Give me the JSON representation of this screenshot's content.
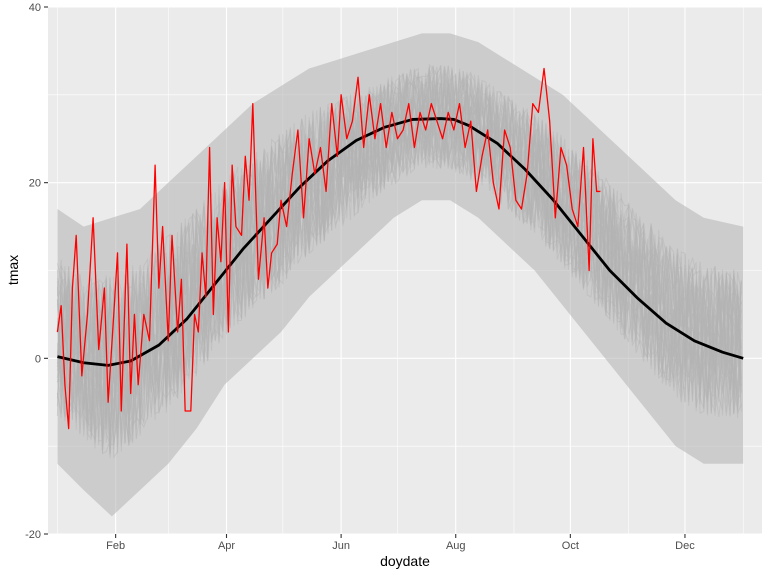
{
  "chart_data": {
    "type": "line",
    "xlabel": "doydate",
    "ylabel": "tmax",
    "x_ticks": [
      {
        "label": "Feb",
        "day": 32
      },
      {
        "label": "Apr",
        "day": 91
      },
      {
        "label": "Jun",
        "day": 152
      },
      {
        "label": "Aug",
        "day": 213
      },
      {
        "label": "Oct",
        "day": 274
      },
      {
        "label": "Dec",
        "day": 335
      }
    ],
    "x_minor_days": [
      1,
      60,
      121,
      182,
      244,
      305,
      366
    ],
    "y_ticks": [
      -20,
      0,
      20,
      40
    ],
    "y_minor": [
      -10,
      10,
      30
    ],
    "xlim": [
      -4,
      376
    ],
    "ylim": [
      -20,
      40
    ],
    "grid": true,
    "legend": "none",
    "colors": {
      "panel_background": "#ebebeb",
      "grid": "#ffffff",
      "historical_years": "#b3b3b3",
      "current_year": "#ff0000",
      "climatology": "#000000"
    },
    "series": [
      {
        "role": "historical daily maxima, one faint line per past year",
        "style": "grey band",
        "envelope": {
          "day": [
            1,
            15,
            30,
            45,
            60,
            75,
            90,
            105,
            120,
            135,
            150,
            165,
            180,
            195,
            210,
            225,
            240,
            255,
            270,
            285,
            300,
            315,
            330,
            345,
            366
          ],
          "lower": [
            -12,
            -15,
            -18,
            -15,
            -12,
            -8,
            -3,
            0,
            3,
            7,
            10,
            13,
            16,
            18,
            18,
            16,
            13,
            10,
            6,
            2,
            -2,
            -6,
            -10,
            -12,
            -12
          ],
          "upper": [
            17,
            15,
            16,
            17,
            20,
            23,
            26,
            29,
            31,
            33,
            34,
            35,
            36,
            37,
            37,
            36,
            34,
            32,
            30,
            27,
            24,
            21,
            18,
            16,
            15
          ]
        }
      },
      {
        "role": "smoothed climatology",
        "style": "black thick line",
        "day": [
          1,
          15,
          28,
          40,
          55,
          70,
          85,
          100,
          115,
          130,
          145,
          160,
          175,
          190,
          205,
          212,
          220,
          235,
          250,
          265,
          280,
          295,
          310,
          325,
          340,
          355,
          366
        ],
        "value": [
          0.2,
          -0.5,
          -0.8,
          -0.3,
          1.5,
          4.5,
          8.5,
          12.5,
          16,
          19.5,
          22.5,
          24.8,
          26.3,
          27.2,
          27.3,
          27.2,
          26.5,
          24.5,
          21.5,
          18,
          14,
          10,
          6.8,
          4,
          2,
          0.7,
          0
        ]
      },
      {
        "role": "current year daily maxima",
        "style": "red line",
        "day": [
          1,
          3,
          5,
          7,
          9,
          11,
          14,
          17,
          20,
          23,
          26,
          28,
          31,
          33,
          35,
          38,
          40,
          42,
          44,
          47,
          50,
          53,
          55,
          57,
          60,
          62,
          65,
          67,
          69,
          72,
          74,
          76,
          78,
          80,
          82,
          84,
          86,
          88,
          90,
          92,
          94,
          96,
          99,
          101,
          103,
          105,
          108,
          111,
          113,
          115,
          118,
          120,
          123,
          126,
          129,
          132,
          135,
          138,
          141,
          144,
          147,
          150,
          152,
          155,
          158,
          161,
          164,
          167,
          170,
          173,
          176,
          179,
          182,
          185,
          188,
          191,
          194,
          197,
          200,
          203,
          206,
          209,
          212,
          215,
          218,
          221,
          224,
          227,
          230,
          233,
          236,
          239,
          242,
          245,
          248,
          251,
          254,
          257,
          260,
          263,
          266,
          269,
          272,
          275,
          278,
          281,
          284,
          286,
          288,
          290
        ],
        "value": [
          3,
          6,
          -3,
          -8,
          8,
          14,
          -2,
          5,
          16,
          1,
          8,
          -5,
          5,
          12,
          -6,
          13,
          -4,
          5,
          -3,
          5,
          2,
          22,
          8,
          15,
          2,
          14,
          3,
          9,
          -6,
          -6,
          5,
          3,
          12,
          7,
          24,
          5,
          16,
          11,
          20,
          3,
          22,
          15,
          14,
          23,
          18,
          29,
          9,
          16,
          8,
          12,
          13,
          18,
          15,
          21,
          26,
          16,
          25,
          21,
          24,
          19,
          29,
          23,
          30,
          25,
          27,
          32,
          24,
          30,
          25,
          29,
          24,
          28,
          25,
          26,
          29,
          24,
          28,
          26,
          29,
          27,
          25,
          28,
          26,
          29,
          24,
          27,
          19,
          23,
          26,
          20,
          17,
          26,
          24,
          18,
          17,
          21,
          29,
          28,
          33,
          27,
          16,
          24,
          22,
          17,
          15,
          24,
          10,
          25,
          19,
          19
        ]
      }
    ]
  }
}
